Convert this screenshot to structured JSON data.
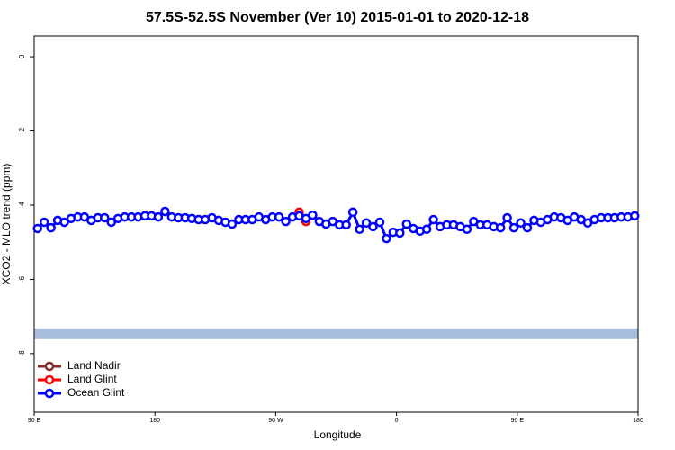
{
  "chart_data": {
    "type": "line",
    "title": "57.5S-52.5S November (Ver 10)   2015-01-01 to 2020-12-18",
    "x_label": "Longitude",
    "y_label": "XCO2 - MLO trend (ppm)",
    "xlim": [
      90,
      540
    ],
    "xticks": [
      {
        "value": 90,
        "label": "90 E"
      },
      180,
      {
        "value": 270,
        "label": "90 W"
      },
      {
        "value": 360,
        "label": "0"
      },
      {
        "value": 450,
        "label": "90 E"
      },
      {
        "value": 540,
        "label": "180"
      }
    ],
    "ylim": [
      -9.58,
      0.56
    ],
    "yticks": [
      0,
      -2,
      -4,
      -6,
      -8
    ],
    "legend": "lower left",
    "shaded_band": {
      "ylim": [
        -7.61,
        -7.32
      ],
      "color": "#a8bede"
    },
    "series": [
      {
        "name": "Land Nadir",
        "color": "#8b2a2a",
        "x": [],
        "values": []
      },
      {
        "name": "Land Glint",
        "color": "#ff0000",
        "x": [
          287.5,
          292.5
        ],
        "values": [
          -4.19,
          -4.44
        ]
      },
      {
        "name": "Ocean Glint",
        "color": "#0000ff",
        "x": [
          92.5,
          97.5,
          102.5,
          107.5,
          112.5,
          117.5,
          122.5,
          127.5,
          132.5,
          137.5,
          142.5,
          147.5,
          152.5,
          157.5,
          162.5,
          167.5,
          172.5,
          177.5,
          182.5,
          187.5,
          192.5,
          197.5,
          202.5,
          207.5,
          212.5,
          217.5,
          222.5,
          227.5,
          232.5,
          237.5,
          242.5,
          247.5,
          252.5,
          257.5,
          262.5,
          267.5,
          272.5,
          277.5,
          282.5,
          287.5,
          292.5,
          297.5,
          302.5,
          307.5,
          312.5,
          317.5,
          322.5,
          327.5,
          332.5,
          337.5,
          342.5,
          347.5,
          352.5,
          357.5,
          362.5,
          367.5,
          372.5,
          377.5,
          382.5,
          387.5,
          392.5,
          397.5,
          402.5,
          407.5,
          412.5,
          417.5,
          422.5,
          427.5,
          432.5,
          437.5,
          442.5,
          447.5,
          452.5,
          457.5,
          462.5,
          467.5,
          472.5,
          477.5,
          482.5,
          487.5,
          492.5,
          497.5,
          502.5,
          507.5,
          512.5,
          517.5,
          522.5,
          527.5,
          532.5,
          537.5
        ],
        "values": [
          -4.63,
          -4.46,
          -4.61,
          -4.41,
          -4.46,
          -4.36,
          -4.32,
          -4.32,
          -4.41,
          -4.34,
          -4.34,
          -4.46,
          -4.36,
          -4.32,
          -4.32,
          -4.32,
          -4.29,
          -4.29,
          -4.32,
          -4.17,
          -4.32,
          -4.34,
          -4.34,
          -4.36,
          -4.39,
          -4.39,
          -4.34,
          -4.41,
          -4.46,
          -4.51,
          -4.39,
          -4.39,
          -4.39,
          -4.32,
          -4.39,
          -4.32,
          -4.32,
          -4.44,
          -4.32,
          -4.29,
          -4.36,
          -4.27,
          -4.44,
          -4.51,
          -4.44,
          -4.53,
          -4.53,
          -4.19,
          -4.65,
          -4.48,
          -4.58,
          -4.46,
          -4.9,
          -4.73,
          -4.75,
          -4.51,
          -4.63,
          -4.7,
          -4.65,
          -4.39,
          -4.58,
          -4.53,
          -4.53,
          -4.58,
          -4.65,
          -4.44,
          -4.53,
          -4.53,
          -4.58,
          -4.61,
          -4.34,
          -4.61,
          -4.48,
          -4.61,
          -4.41,
          -4.46,
          -4.39,
          -4.32,
          -4.34,
          -4.41,
          -4.32,
          -4.39,
          -4.48,
          -4.39,
          -4.34,
          -4.34,
          -4.34,
          -4.32,
          -4.32,
          -4.29
        ]
      }
    ]
  }
}
